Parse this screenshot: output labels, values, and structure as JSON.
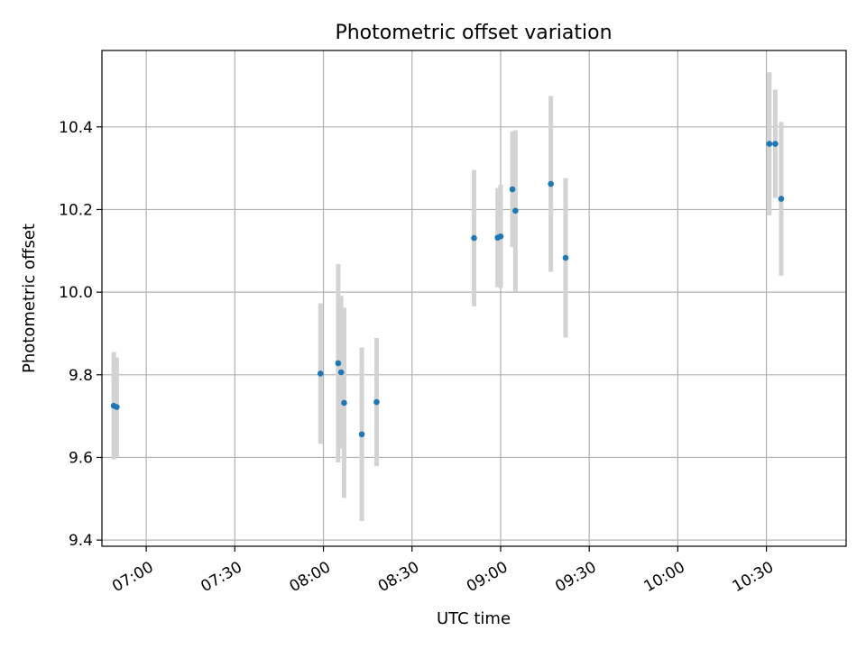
{
  "chart_data": {
    "type": "scatter",
    "title": "Photometric offset variation",
    "xlabel": "UTC time",
    "ylabel": "Photometric offset",
    "x_axis_type": "time",
    "xlim": [
      "06:45",
      "10:57"
    ],
    "ylim": [
      9.385,
      10.585
    ],
    "xticks": [
      "07:00",
      "07:30",
      "08:00",
      "08:30",
      "09:00",
      "09:30",
      "10:00",
      "10:30"
    ],
    "yticks": [
      9.4,
      9.6,
      9.8,
      10.0,
      10.2,
      10.4
    ],
    "ytick_labels": [
      "9.4",
      "9.6",
      "9.8",
      "10.0",
      "10.2",
      "10.4"
    ],
    "grid": true,
    "marker_color": "#1f77b4",
    "errorbar_color": "#d3d3d3",
    "points": [
      {
        "time": "06:49",
        "y": 9.725,
        "yerr": 0.13
      },
      {
        "time": "06:50",
        "y": 9.722,
        "yerr": 0.12
      },
      {
        "time": "07:59",
        "y": 9.803,
        "yerr": 0.17
      },
      {
        "time": "08:05",
        "y": 9.828,
        "yerr": 0.24
      },
      {
        "time": "08:06",
        "y": 9.806,
        "yerr": 0.185
      },
      {
        "time": "08:07",
        "y": 9.732,
        "yerr": 0.23
      },
      {
        "time": "08:13",
        "y": 9.656,
        "yerr": 0.21
      },
      {
        "time": "08:18",
        "y": 9.734,
        "yerr": 0.155
      },
      {
        "time": "08:51",
        "y": 10.131,
        "yerr": 0.165
      },
      {
        "time": "08:59",
        "y": 10.132,
        "yerr": 0.12
      },
      {
        "time": "09:00",
        "y": 10.135,
        "yerr": 0.125
      },
      {
        "time": "09:04",
        "y": 10.249,
        "yerr": 0.14
      },
      {
        "time": "09:05",
        "y": 10.197,
        "yerr": 0.195
      },
      {
        "time": "09:17",
        "y": 10.262,
        "yerr": 0.213
      },
      {
        "time": "09:22",
        "y": 10.083,
        "yerr": 0.193
      },
      {
        "time": "10:31",
        "y": 10.359,
        "yerr": 0.173
      },
      {
        "time": "10:33",
        "y": 10.359,
        "yerr": 0.131
      },
      {
        "time": "10:35",
        "y": 10.226,
        "yerr": 0.186
      }
    ]
  }
}
